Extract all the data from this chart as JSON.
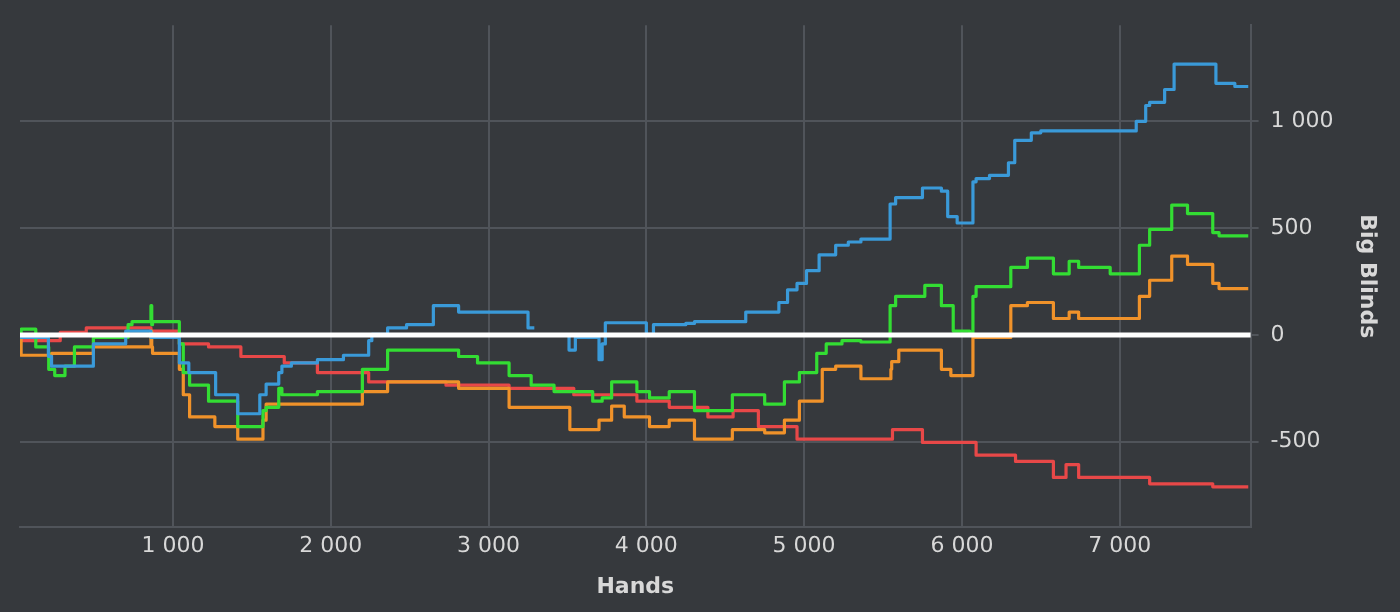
{
  "chart_data": {
    "type": "step",
    "xlabel": "Hands",
    "ylabel": "Big Blinds",
    "xlim": [
      30,
      7830
    ],
    "ylim": [
      -900,
      1450
    ],
    "xticks": [
      {
        "value": 1000,
        "label": "1 000"
      },
      {
        "value": 2000,
        "label": "2 000"
      },
      {
        "value": 3000,
        "label": "3 000"
      },
      {
        "value": 4000,
        "label": "4 000"
      },
      {
        "value": 5000,
        "label": "5 000"
      },
      {
        "value": 6000,
        "label": "6 000"
      },
      {
        "value": 7000,
        "label": "7 000"
      }
    ],
    "yticks": [
      -500,
      0,
      500,
      {
        "value": 1000,
        "label": "1 000"
      }
    ],
    "grid": true,
    "legend": false,
    "marker": "none",
    "ref_lines": [
      {
        "axis": "y",
        "value": 0,
        "label": null,
        "color": "#ffffff"
      }
    ],
    "series": [
      {
        "color": "#3a9ad9",
        "x": [
          37,
          210,
          230,
          495,
          700,
          860,
          1040,
          1100,
          1270,
          1410,
          1444,
          1550,
          1590,
          1670,
          1690,
          1750,
          1915,
          2080,
          2240,
          2260,
          2360,
          2480,
          2650,
          2810,
          2970,
          3250,
          3290,
          3415,
          3510,
          3515,
          3550,
          3570,
          3700,
          3720,
          3740,
          3840,
          4000,
          4045,
          4250,
          4305,
          4630,
          4840,
          4895,
          4955,
          5015,
          5095,
          5200,
          5280,
          5360,
          5545,
          5580,
          5750,
          5870,
          5910,
          5970,
          6070,
          6090,
          6175,
          6295,
          6335,
          6440,
          6500,
          6660,
          7105,
          7165,
          7190,
          7285,
          7345,
          7405,
          7610,
          7630,
          7730,
          7815
        ],
        "values": [
          0,
          -12,
          -100,
          -146,
          -42,
          18,
          -12,
          -131,
          -176,
          -280,
          -369,
          -369,
          -280,
          -230,
          -176,
          -146,
          -131,
          -116,
          -95,
          -27,
          3,
          33,
          48,
          137,
          107,
          107,
          33,
          null,
          3,
          -71,
          -71,
          -12,
          -12,
          -116,
          -42,
          57,
          57,
          3,
          48,
          54,
          62,
          107,
          152,
          211,
          241,
          301,
          375,
          420,
          435,
          449,
          613,
          643,
          688,
          673,
          554,
          524,
          717,
          732,
          747,
          806,
          911,
          946,
          955,
          955,
          1000,
          1074,
          1089,
          1149,
          1268,
          1268,
          1178,
          1178,
          1163
        ]
      },
      {
        "color": "#33dd33",
        "x": [
          37,
          130,
          212,
          250,
          315,
          375,
          495,
          715,
          740,
          860,
          865,
          870,
          1040,
          1065,
          1105,
          1225,
          1410,
          1428,
          1570,
          1590,
          1670,
          1690,
          1915,
          2200,
          2360,
          2810,
          2930,
          3130,
          3270,
          3415,
          3660,
          3720,
          3780,
          3860,
          3940,
          4020,
          4145,
          4305,
          4545,
          4750,
          4875,
          4970,
          5080,
          5140,
          5240,
          5360,
          5545,
          5580,
          5765,
          5870,
          5945,
          6050,
          6070,
          6090,
          6310,
          6415,
          6580,
          6680,
          6740,
          6940,
          7125,
          7190,
          7330,
          7430,
          7590,
          7630,
          7815
        ],
        "values": [
          0,
          27,
          -56,
          -161,
          -190,
          -146,
          -56,
          -12,
          48,
          62,
          137,
          48,
          62,
          -42,
          -176,
          -235,
          -310,
          -429,
          -429,
          -354,
          -339,
          -250,
          -280,
          -265,
          -161,
          -71,
          -101,
          -131,
          -190,
          -235,
          -265,
          -310,
          -295,
          -220,
          -220,
          -265,
          -295,
          -265,
          -354,
          -280,
          -324,
          -220,
          -176,
          -86,
          -42,
          -27,
          -33,
          137,
          181,
          232,
          137,
          18,
          12,
          181,
          226,
          316,
          360,
          286,
          345,
          316,
          286,
          420,
          494,
          608,
          568,
          479,
          464
        ]
      },
      {
        "color": "#f0922a",
        "x": [
          37,
          230,
          495,
          860,
          865,
          870,
          1040,
          1065,
          1105,
          1265,
          1410,
          1420,
          1570,
          1590,
          1690,
          1915,
          2200,
          2360,
          2810,
          3130,
          3290,
          3515,
          3700,
          3780,
          3860,
          4020,
          4145,
          4305,
          4545,
          4750,
          4875,
          4970,
          5115,
          5200,
          5360,
          5550,
          5555,
          5600,
          5870,
          5930,
          6070,
          6090,
          6310,
          6415,
          6580,
          6680,
          6740,
          7125,
          7190,
          7330,
          7430,
          7590,
          7630,
          7815
        ],
        "values": [
          0,
          -95,
          -86,
          -56,
          18,
          -56,
          -86,
          -161,
          -280,
          -384,
          -429,
          -488,
          -488,
          -399,
          -324,
          -324,
          -324,
          -265,
          -220,
          -250,
          -339,
          -339,
          -443,
          -399,
          -333,
          -384,
          -429,
          -399,
          -488,
          -443,
          -458,
          -399,
          -310,
          -161,
          -146,
          -205,
          -161,
          -125,
          -71,
          -161,
          -190,
          -12,
          -12,
          137,
          152,
          77,
          107,
          77,
          181,
          256,
          369,
          330,
          241,
          217
        ]
      },
      {
        "color": "#e84848",
        "x": [
          37,
          285,
          450,
          860,
          1040,
          1225,
          1430,
          1705,
          1915,
          2240,
          2730,
          3130,
          3540,
          3940,
          4145,
          4390,
          4550,
          4710,
          4955,
          5560,
          5750,
          6090,
          6340,
          6580,
          6660,
          6740,
          7190,
          7590,
          7815
        ],
        "values": [
          0,
          -27,
          12,
          33,
          18,
          -42,
          -56,
          -101,
          -131,
          -176,
          -220,
          -235,
          -250,
          -280,
          -310,
          -339,
          -384,
          -354,
          -429,
          -488,
          -443,
          -503,
          -563,
          -592,
          -667,
          -607,
          -667,
          -697,
          -711
        ]
      }
    ]
  }
}
